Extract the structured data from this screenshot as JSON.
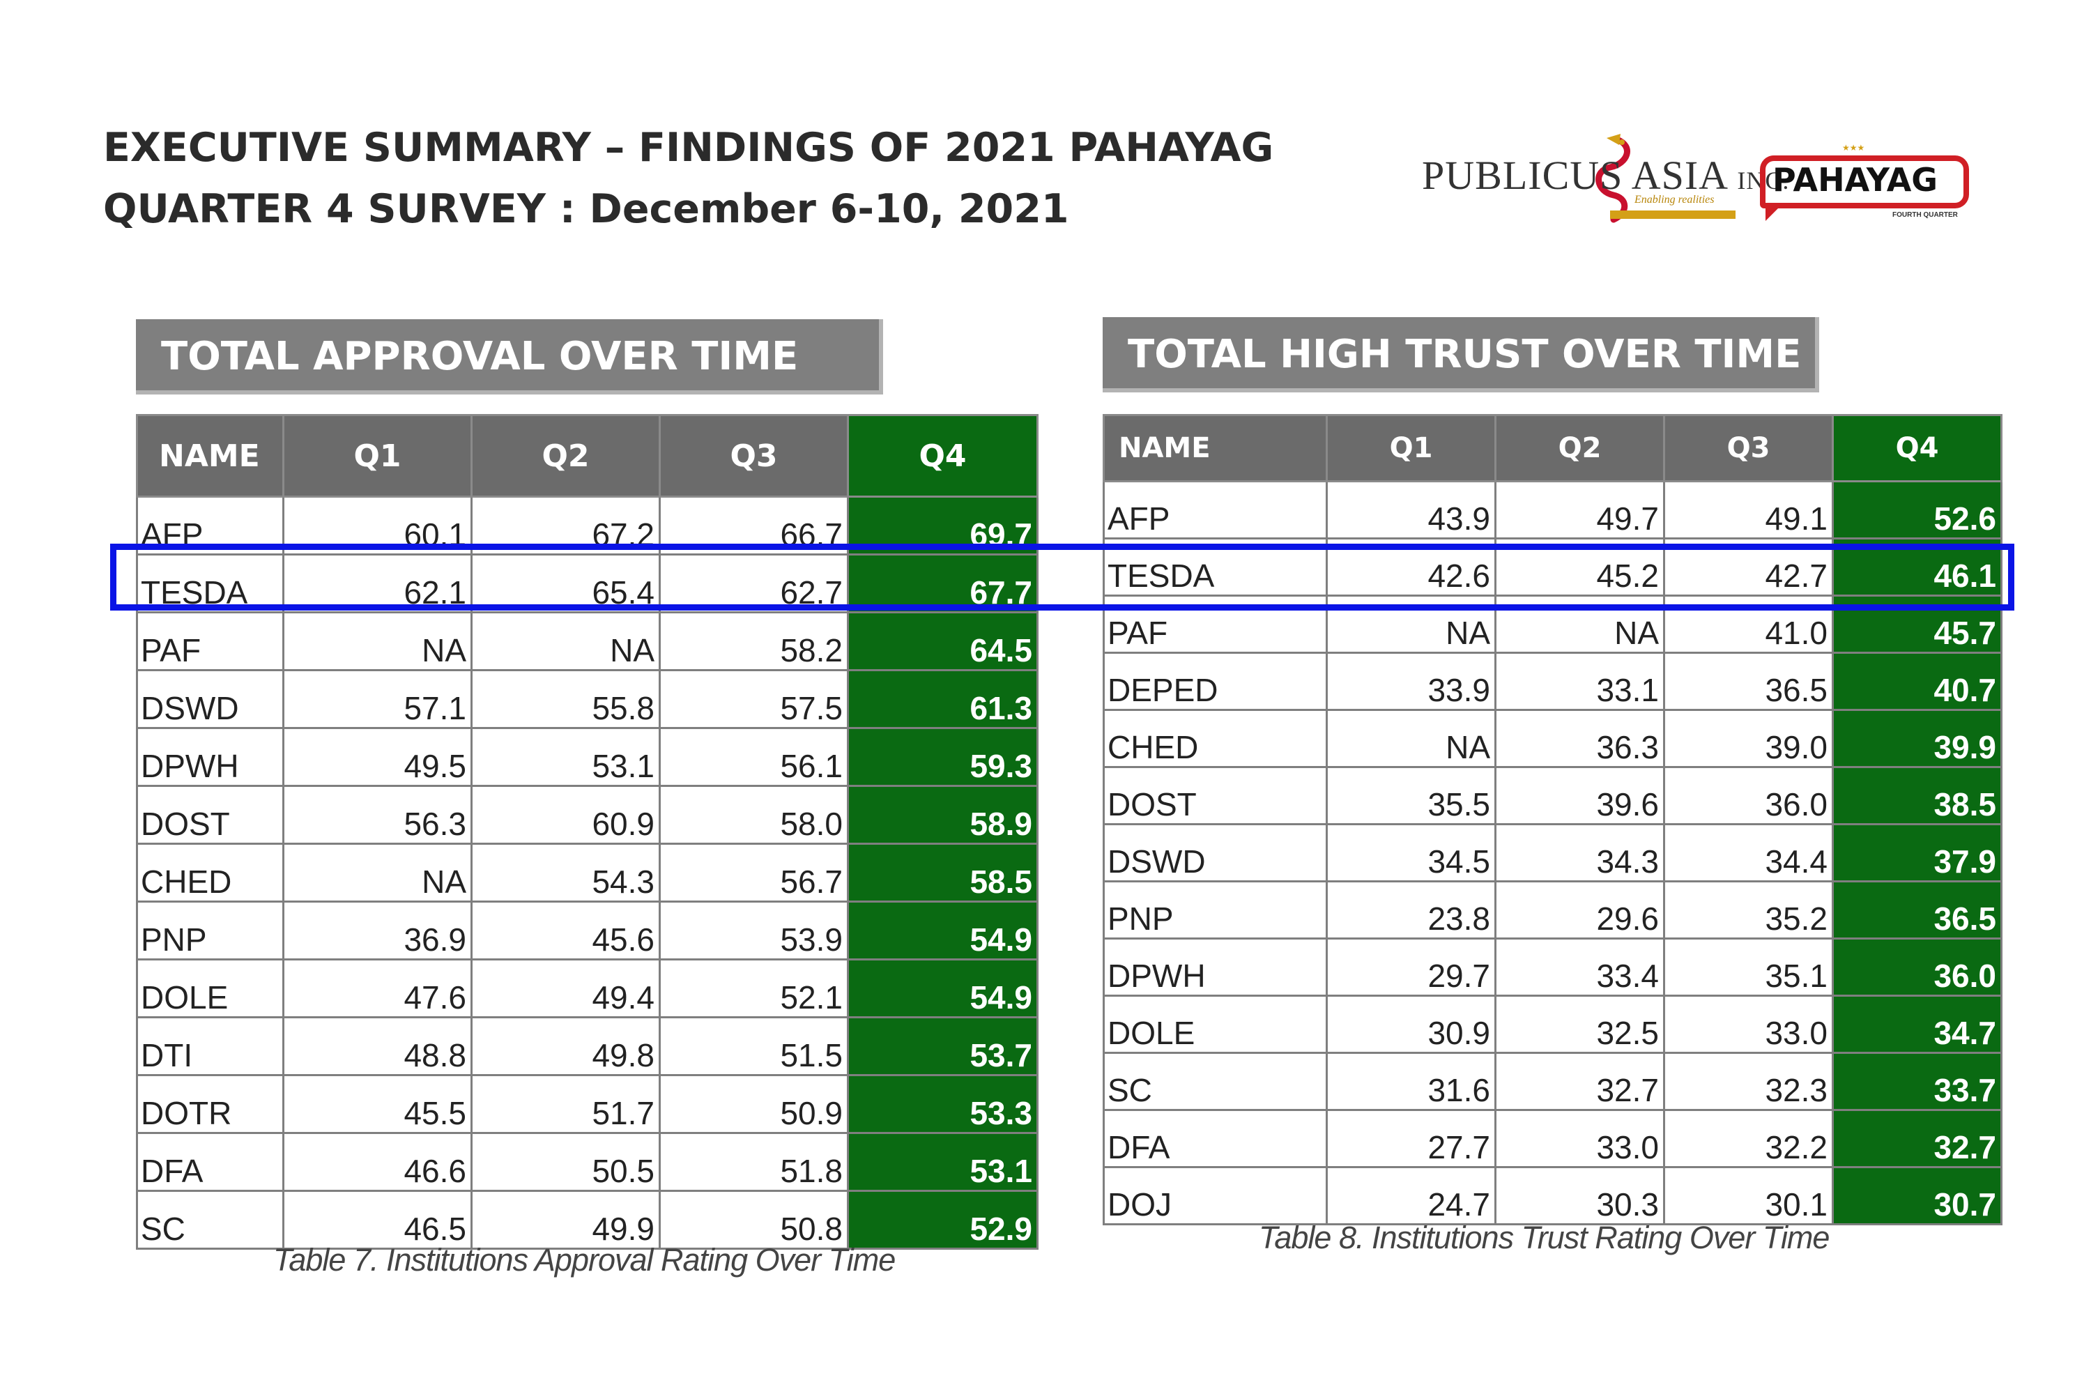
{
  "header": {
    "title_line1": "EXECUTIVE SUMMARY – FINDINGS OF 2021 PAHAYAG",
    "title_line2": "QUARTER 4 SURVEY : December 6-10, 2021"
  },
  "logos": {
    "publicus": {
      "main": "PUBLICUS ASIA",
      "suffix": "INC.",
      "tagline": "Enabling realities"
    },
    "pahayag": {
      "name": "PAHAYAG",
      "subtitle": "FOURTH QUARTER"
    }
  },
  "colors": {
    "banner_gray": "#7f7f7f",
    "header_gray": "#6b6b6b",
    "q4_green": "#0a6a12",
    "highlight_blue": "#0a14e6"
  },
  "approval": {
    "banner": "TOTAL APPROVAL OVER TIME",
    "columns": [
      "NAME",
      "Q1",
      "Q2",
      "Q3",
      "Q4"
    ],
    "rows": [
      [
        "AFP",
        "60.1",
        "67.2",
        "66.7",
        "69.7"
      ],
      [
        "TESDA",
        "62.1",
        "65.4",
        "62.7",
        "67.7"
      ],
      [
        "PAF",
        "NA",
        "NA",
        "58.2",
        "64.5"
      ],
      [
        "DSWD",
        "57.1",
        "55.8",
        "57.5",
        "61.3"
      ],
      [
        "DPWH",
        "49.5",
        "53.1",
        "56.1",
        "59.3"
      ],
      [
        "DOST",
        "56.3",
        "60.9",
        "58.0",
        "58.9"
      ],
      [
        "CHED",
        "NA",
        "54.3",
        "56.7",
        "58.5"
      ],
      [
        "PNP",
        "36.9",
        "45.6",
        "53.9",
        "54.9"
      ],
      [
        "DOLE",
        "47.6",
        "49.4",
        "52.1",
        "54.9"
      ],
      [
        "DTI",
        "48.8",
        "49.8",
        "51.5",
        "53.7"
      ],
      [
        "DOTR",
        "45.5",
        "51.7",
        "50.9",
        "53.3"
      ],
      [
        "DFA",
        "46.6",
        "50.5",
        "51.8",
        "53.1"
      ],
      [
        "SC",
        "46.5",
        "49.9",
        "50.8",
        "52.9"
      ]
    ],
    "caption": "Table 7. Institutions Approval Rating Over Time"
  },
  "trust": {
    "banner": "TOTAL HIGH TRUST OVER TIME",
    "columns": [
      "NAME",
      "Q1",
      "Q2",
      "Q3",
      "Q4"
    ],
    "rows": [
      [
        "AFP",
        "43.9",
        "49.7",
        "49.1",
        "52.6"
      ],
      [
        "TESDA",
        "42.6",
        "45.2",
        "42.7",
        "46.1"
      ],
      [
        "PAF",
        "NA",
        "NA",
        "41.0",
        "45.7"
      ],
      [
        "DEPED",
        "33.9",
        "33.1",
        "36.5",
        "40.7"
      ],
      [
        "CHED",
        "NA",
        "36.3",
        "39.0",
        "39.9"
      ],
      [
        "DOST",
        "35.5",
        "39.6",
        "36.0",
        "38.5"
      ],
      [
        "DSWD",
        "34.5",
        "34.3",
        "34.4",
        "37.9"
      ],
      [
        "PNP",
        "23.8",
        "29.6",
        "35.2",
        "36.5"
      ],
      [
        "DPWH",
        "29.7",
        "33.4",
        "35.1",
        "36.0"
      ],
      [
        "DOLE",
        "30.9",
        "32.5",
        "33.0",
        "34.7"
      ],
      [
        "SC",
        "31.6",
        "32.7",
        "32.3",
        "33.7"
      ],
      [
        "DFA",
        "27.7",
        "33.0",
        "32.2",
        "32.7"
      ],
      [
        "DOJ",
        "24.7",
        "30.3",
        "30.1",
        "30.7"
      ]
    ],
    "caption": "Table 8. Institutions Trust Rating Over Time"
  }
}
